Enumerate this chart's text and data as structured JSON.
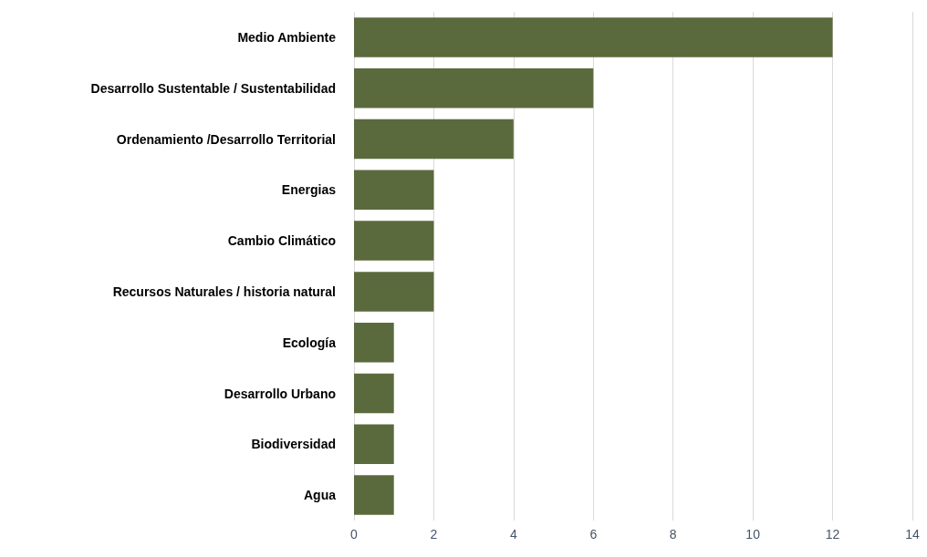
{
  "chart_data": {
    "type": "bar",
    "orientation": "horizontal",
    "categories": [
      "Medio Ambiente",
      "Desarrollo Sustentable / Sustentabilidad",
      "Ordenamiento /Desarrollo Territorial",
      "Energias",
      "Cambio Climático",
      "Recursos Naturales / historia natural",
      "Ecología",
      "Desarrollo Urbano",
      "Biodiversidad",
      "Agua"
    ],
    "values": [
      12,
      6,
      4,
      2,
      2,
      2,
      1,
      1,
      1,
      1
    ],
    "color": "#5b6a3c",
    "xlim": [
      0,
      14
    ],
    "xticks": [
      0,
      2,
      4,
      6,
      8,
      10,
      12,
      14
    ],
    "grid": "x"
  }
}
